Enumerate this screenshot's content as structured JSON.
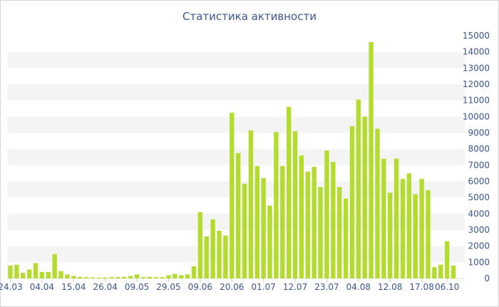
{
  "chart_data": {
    "type": "bar",
    "title": "Статистика активности",
    "xlabel": "",
    "ylabel": "",
    "y_axis_side": "right",
    "ylim": [
      0,
      15000
    ],
    "y_ticks": [
      "0",
      "1000",
      "2000",
      "3000",
      "4000",
      "5000",
      "6000",
      "7000",
      "8000",
      "9000",
      "10000",
      "11000",
      "12000",
      "13000",
      "14000",
      "15000"
    ],
    "x_tick_labels": [
      {
        "label": "24.03",
        "index": 0
      },
      {
        "label": "04.04",
        "index": 5
      },
      {
        "label": "15.04",
        "index": 10
      },
      {
        "label": "26.04",
        "index": 15
      },
      {
        "label": "09.05",
        "index": 20
      },
      {
        "label": "29.05",
        "index": 25
      },
      {
        "label": "09.06",
        "index": 30
      },
      {
        "label": "20.06",
        "index": 35
      },
      {
        "label": "01.07",
        "index": 40
      },
      {
        "label": "12.07",
        "index": 45
      },
      {
        "label": "23.07",
        "index": 50
      },
      {
        "label": "04.08",
        "index": 55
      },
      {
        "label": "12.08",
        "index": 60
      },
      {
        "label": "17.08",
        "index": 65
      },
      {
        "label": "06.10",
        "index": 69
      }
    ],
    "bar_color": "#b4dc2e",
    "grid": "horizontal bands",
    "values": [
      800,
      850,
      350,
      550,
      950,
      400,
      400,
      1500,
      450,
      250,
      150,
      100,
      80,
      60,
      50,
      60,
      80,
      80,
      100,
      150,
      250,
      80,
      100,
      80,
      80,
      200,
      280,
      200,
      250,
      750,
      4100,
      2600,
      3650,
      2950,
      2650,
      10250,
      7750,
      5850,
      9150,
      6950,
      6200,
      4500,
      9050,
      6950,
      10600,
      9100,
      7600,
      6600,
      6900,
      5650,
      7900,
      7200,
      5650,
      4950,
      9400,
      11050,
      10000,
      14600,
      9250,
      7400,
      5300,
      7400,
      6150,
      6500,
      5200,
      6150,
      5450,
      700,
      850,
      2300,
      800
    ]
  }
}
